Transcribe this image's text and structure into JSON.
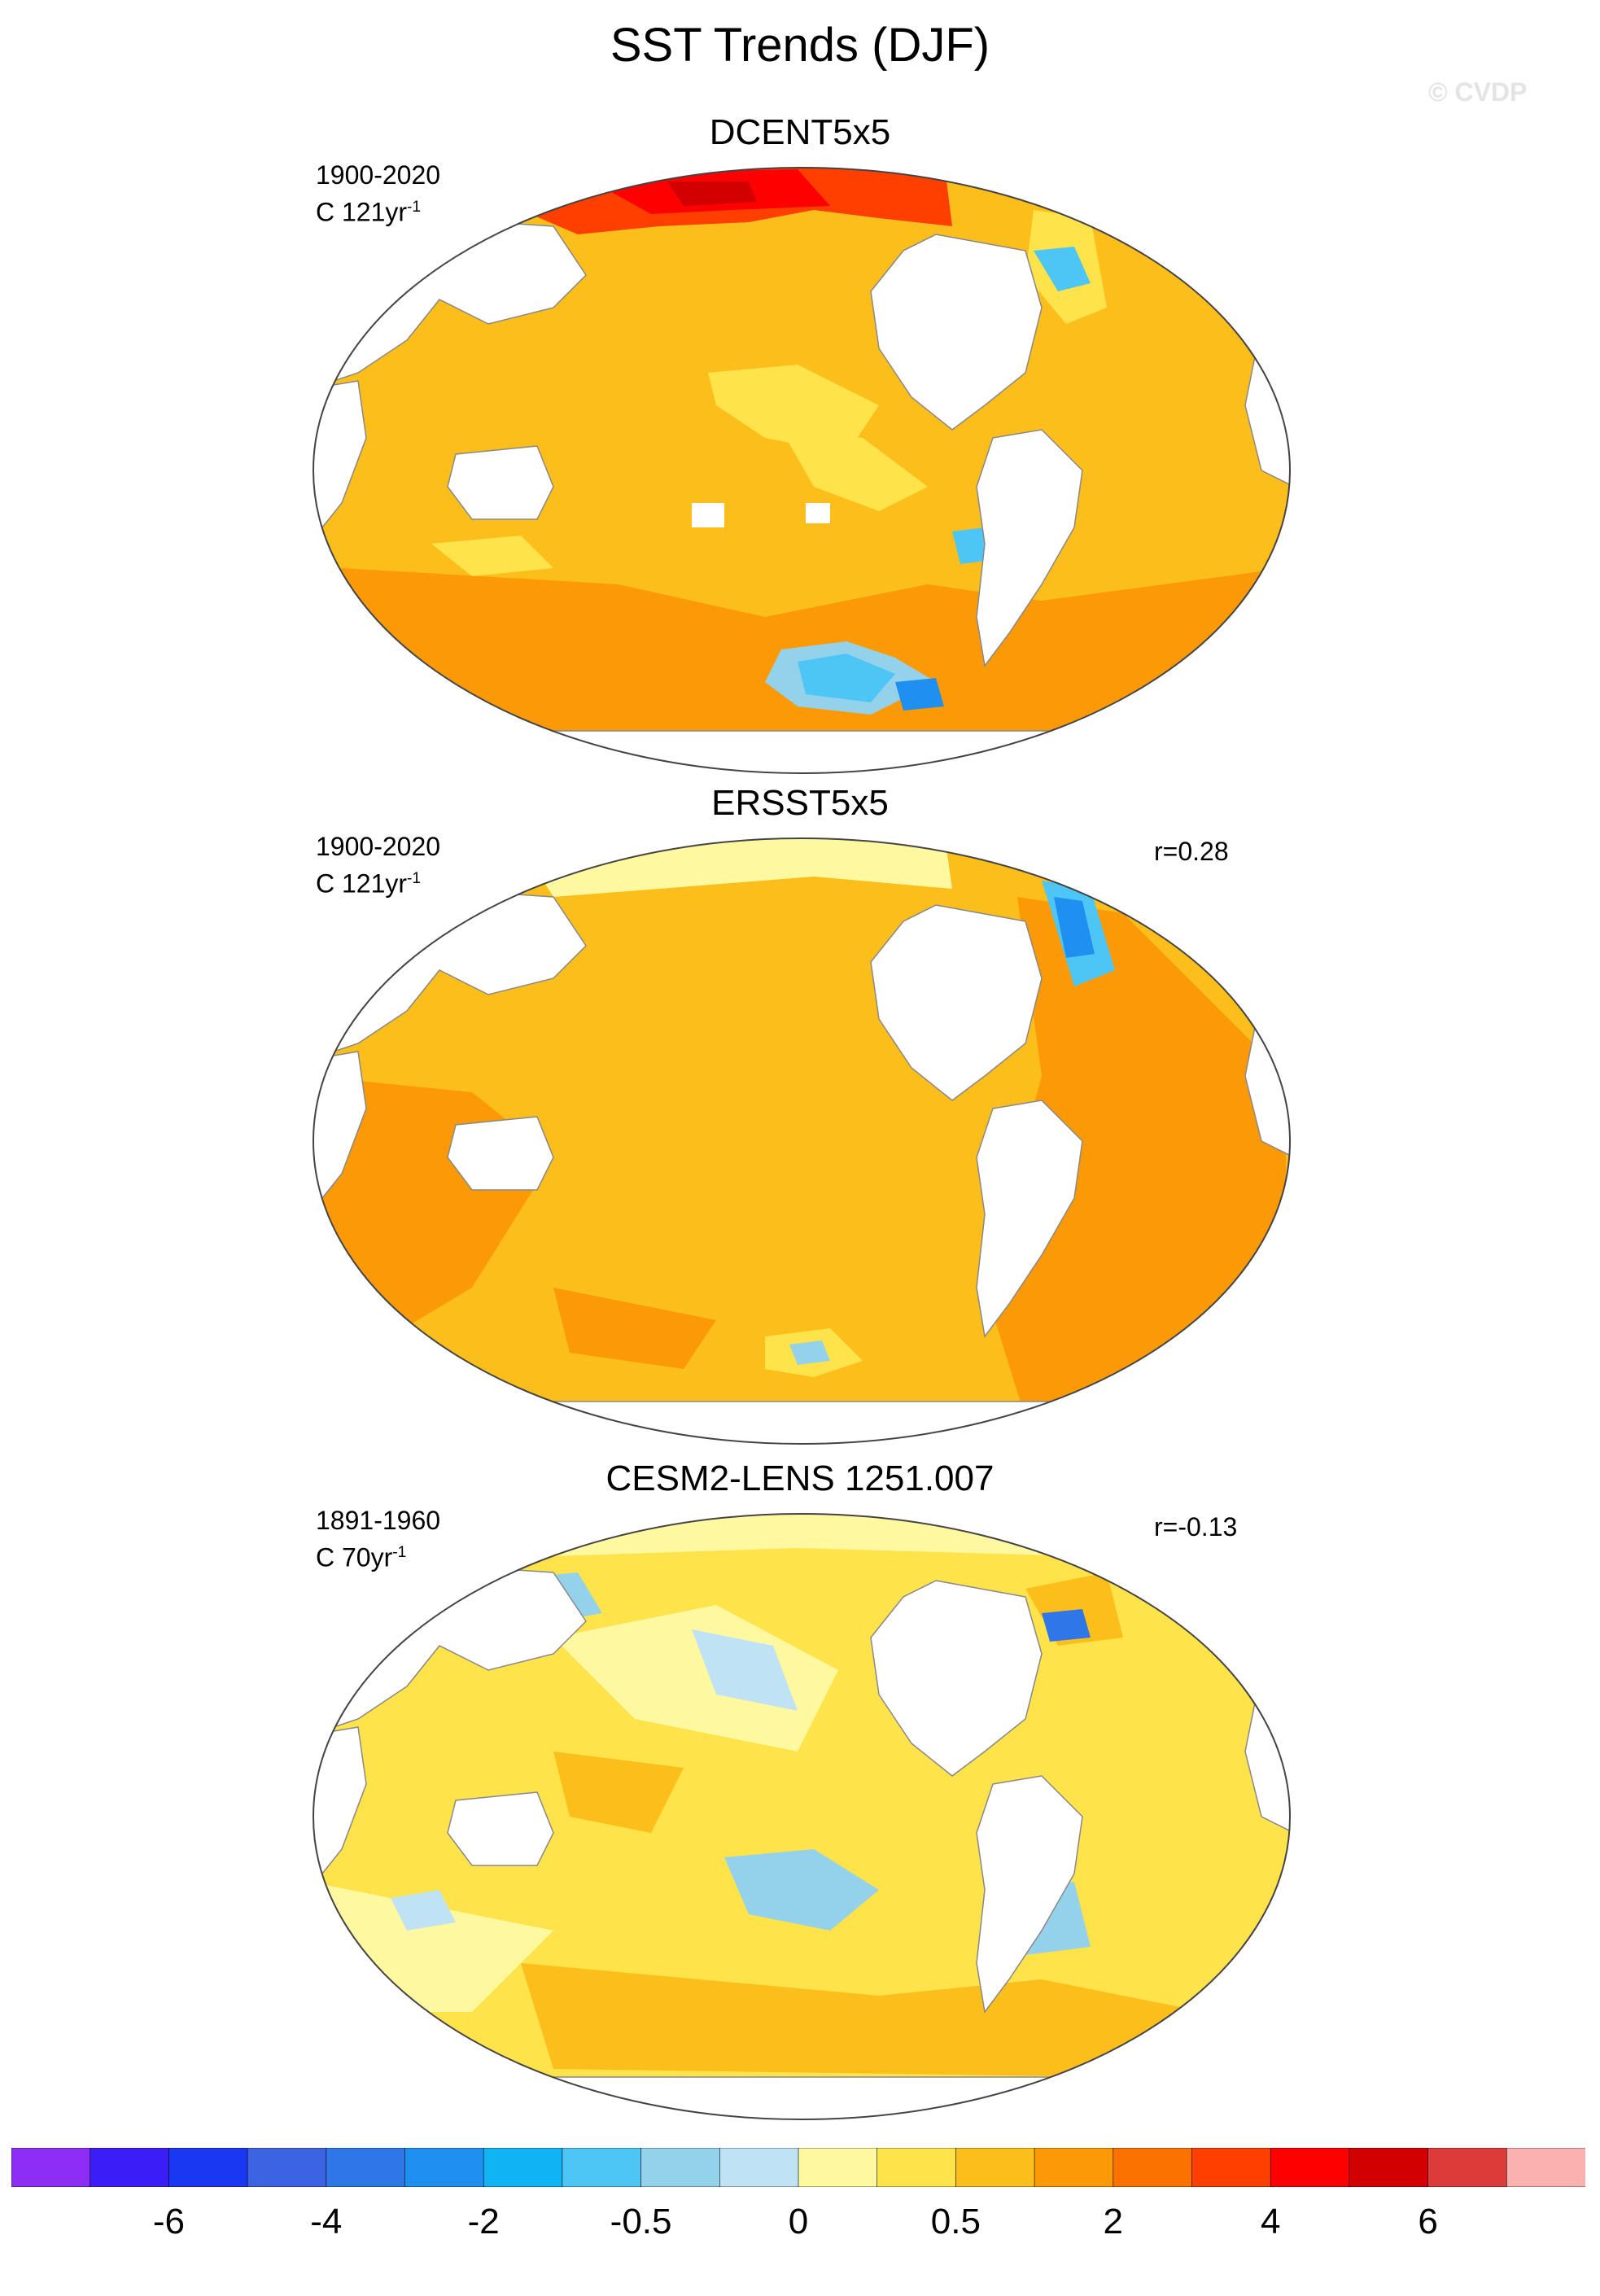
{
  "figure": {
    "title": "SST Trends (DJF)",
    "watermark": "© CVDP"
  },
  "panels": [
    {
      "title": "DCENT5x5",
      "period": "1900-2020",
      "units_prefix": "C ",
      "units_value": "121yr",
      "units_sup": "-1",
      "correlation": ""
    },
    {
      "title": "ERSST5x5",
      "period": "1900-2020",
      "units_prefix": "C ",
      "units_value": "121yr",
      "units_sup": "-1",
      "correlation": "r=0.28"
    },
    {
      "title": "CESM2-LENS 1251.007",
      "period": "1891-1960",
      "units_prefix": "C ",
      "units_value": "70yr",
      "units_sup": "-1",
      "correlation": "r=-0.13"
    }
  ],
  "colorbar": {
    "colors": [
      "#8c2ef5",
      "#3b1ef5",
      "#1a38f2",
      "#3c63e2",
      "#2f77e8",
      "#1f90f0",
      "#10b4f5",
      "#4dc6f5",
      "#94d2ec",
      "#bfe3f5",
      "#fef9a0",
      "#fee34a",
      "#fcbe1a",
      "#fb9a06",
      "#fb7200",
      "#fe3f00",
      "#fe0000",
      "#d20000",
      "#dd3a3a",
      "#fcb1b1"
    ],
    "tick_labels": [
      "-6",
      "-4",
      "-2",
      "-0.5",
      "0",
      "0.5",
      "2",
      "4",
      "6"
    ],
    "tick_boundaries": [
      2,
      4,
      6,
      8,
      10,
      12,
      14,
      16,
      18
    ]
  },
  "colors": {
    "land": "#ffffff",
    "coastline": "#888888"
  }
}
